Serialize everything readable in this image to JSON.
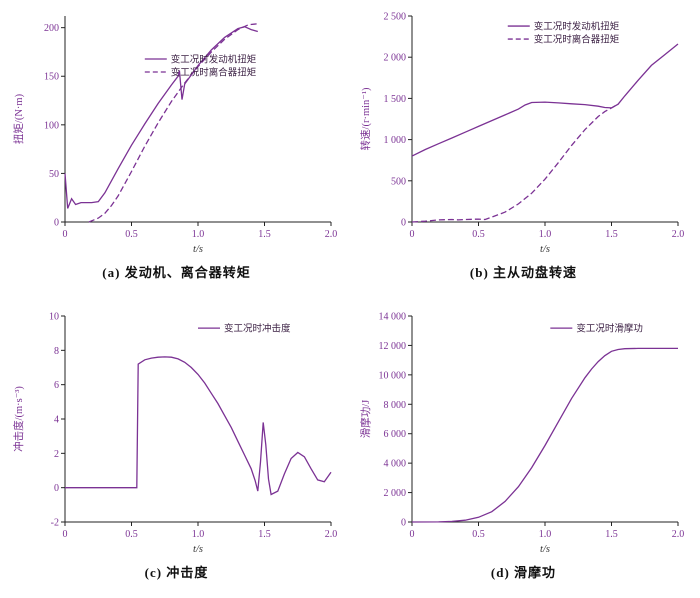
{
  "colors": {
    "line": "#7b3294",
    "tick_text": "#7b3294",
    "axis": "#222222",
    "xlabel_text": "#333333",
    "legend_text": "#3c2144",
    "caption": "#111111"
  },
  "chart_data": [
    {
      "id": "a",
      "type": "line",
      "caption": "(a) 发动机、离合器转矩",
      "xlabel": "t/s",
      "ylabel": "扭矩/(N·m)",
      "xlim": [
        0,
        2
      ],
      "ylim": [
        0,
        212
      ],
      "xticks": {
        "values": [
          0,
          0.5,
          1,
          1.5,
          2
        ],
        "labels": [
          "0",
          "0.5",
          "1.0",
          "1.5",
          "2.0"
        ]
      },
      "yticks": {
        "values": [
          0,
          50,
          100,
          150,
          200
        ],
        "labels": [
          "0",
          "50",
          "100",
          "150",
          "200"
        ]
      },
      "legend_pos": {
        "fx": 0.3,
        "fy": 0.17
      },
      "grid": false,
      "series": [
        {
          "name": "变工况时发动机扭矩",
          "style": "solid",
          "points": [
            [
              0,
              50
            ],
            [
              0.02,
              14
            ],
            [
              0.05,
              24
            ],
            [
              0.08,
              18
            ],
            [
              0.12,
              20
            ],
            [
              0.2,
              20
            ],
            [
              0.25,
              21
            ],
            [
              0.3,
              30
            ],
            [
              0.4,
              55
            ],
            [
              0.5,
              79
            ],
            [
              0.6,
              101
            ],
            [
              0.7,
              122
            ],
            [
              0.8,
              141
            ],
            [
              0.85,
              150
            ],
            [
              0.86,
              156
            ],
            [
              0.88,
              126
            ],
            [
              0.9,
              142
            ],
            [
              1.0,
              161
            ],
            [
              1.1,
              177
            ],
            [
              1.2,
              190
            ],
            [
              1.3,
              199
            ],
            [
              1.35,
              201
            ],
            [
              1.4,
              198
            ],
            [
              1.45,
              196
            ]
          ]
        },
        {
          "name": "变工况时离合器扭矩",
          "style": "dashed",
          "points": [
            [
              0.18,
              0
            ],
            [
              0.25,
              4
            ],
            [
              0.3,
              9
            ],
            [
              0.35,
              17
            ],
            [
              0.4,
              27
            ],
            [
              0.5,
              52
            ],
            [
              0.6,
              78
            ],
            [
              0.7,
              102
            ],
            [
              0.8,
              124
            ],
            [
              0.9,
              143
            ],
            [
              1.0,
              160
            ],
            [
              1.1,
              175
            ],
            [
              1.2,
              188
            ],
            [
              1.3,
              198
            ],
            [
              1.38,
              203
            ],
            [
              1.45,
              204
            ]
          ]
        }
      ]
    },
    {
      "id": "b",
      "type": "line",
      "caption": "(b) 主从动盘转速",
      "xlabel": "t/s",
      "ylabel": "转速/(r·min⁻¹)",
      "xlim": [
        0,
        2
      ],
      "ylim": [
        0,
        2500
      ],
      "xticks": {
        "values": [
          0,
          0.5,
          1,
          1.5,
          2
        ],
        "labels": [
          "0",
          "0.5",
          "1.0",
          "1.5",
          "2.0"
        ]
      },
      "yticks": {
        "values": [
          0,
          500,
          1000,
          1500,
          2000,
          2500
        ],
        "labels": [
          "0",
          "500",
          "1 000",
          "1 500",
          "2 000",
          "2 500"
        ]
      },
      "legend_pos": {
        "fx": 0.36,
        "fy": 0.01
      },
      "grid": false,
      "series": [
        {
          "name": "变工况时发动机扭矩",
          "style": "solid",
          "points": [
            [
              0,
              800
            ],
            [
              0.1,
              880
            ],
            [
              0.2,
              950
            ],
            [
              0.3,
              1020
            ],
            [
              0.4,
              1090
            ],
            [
              0.5,
              1160
            ],
            [
              0.6,
              1230
            ],
            [
              0.7,
              1300
            ],
            [
              0.8,
              1370
            ],
            [
              0.85,
              1420
            ],
            [
              0.9,
              1450
            ],
            [
              1.0,
              1455
            ],
            [
              1.1,
              1445
            ],
            [
              1.2,
              1435
            ],
            [
              1.3,
              1425
            ],
            [
              1.4,
              1405
            ],
            [
              1.45,
              1390
            ],
            [
              1.5,
              1385
            ],
            [
              1.55,
              1430
            ],
            [
              1.6,
              1530
            ],
            [
              1.7,
              1720
            ],
            [
              1.8,
              1900
            ],
            [
              1.9,
              2030
            ],
            [
              2.0,
              2160
            ]
          ]
        },
        {
          "name": "变工况时离合器扭矩",
          "style": "dashed",
          "points": [
            [
              0,
              0
            ],
            [
              0.1,
              10
            ],
            [
              0.2,
              25
            ],
            [
              0.3,
              30
            ],
            [
              0.35,
              25
            ],
            [
              0.4,
              30
            ],
            [
              0.5,
              35
            ],
            [
              0.55,
              30
            ],
            [
              0.6,
              60
            ],
            [
              0.7,
              120
            ],
            [
              0.8,
              220
            ],
            [
              0.9,
              350
            ],
            [
              1.0,
              520
            ],
            [
              1.1,
              720
            ],
            [
              1.2,
              930
            ],
            [
              1.3,
              1120
            ],
            [
              1.4,
              1280
            ],
            [
              1.45,
              1340
            ],
            [
              1.5,
              1385
            ],
            [
              1.55,
              1430
            ]
          ]
        }
      ]
    },
    {
      "id": "c",
      "type": "line",
      "caption": "(c) 冲击度",
      "xlabel": "t/s",
      "ylabel": "冲击度/(m·s⁻³)",
      "xlim": [
        0,
        2
      ],
      "ylim": [
        -2,
        10
      ],
      "xticks": {
        "values": [
          0,
          0.5,
          1,
          1.5,
          2
        ],
        "labels": [
          "0",
          "0.5",
          "1.0",
          "1.5",
          "2.0"
        ]
      },
      "yticks": {
        "values": [
          -2,
          0,
          2,
          4,
          6,
          8,
          10
        ],
        "labels": [
          "-2",
          "0",
          "2",
          "4",
          "6",
          "8",
          "10"
        ]
      },
      "legend_pos": {
        "fx": 0.5,
        "fy": 0.02
      },
      "grid": false,
      "series": [
        {
          "name": "变工况时冲击度",
          "style": "solid",
          "points": [
            [
              0,
              0
            ],
            [
              0.54,
              0
            ],
            [
              0.55,
              7.2
            ],
            [
              0.6,
              7.45
            ],
            [
              0.65,
              7.55
            ],
            [
              0.7,
              7.6
            ],
            [
              0.75,
              7.62
            ],
            [
              0.8,
              7.6
            ],
            [
              0.85,
              7.5
            ],
            [
              0.9,
              7.3
            ],
            [
              0.95,
              7.0
            ],
            [
              1.0,
              6.6
            ],
            [
              1.05,
              6.1
            ],
            [
              1.1,
              5.5
            ],
            [
              1.15,
              4.9
            ],
            [
              1.2,
              4.2
            ],
            [
              1.25,
              3.5
            ],
            [
              1.3,
              2.7
            ],
            [
              1.35,
              1.9
            ],
            [
              1.4,
              1.1
            ],
            [
              1.43,
              0.4
            ],
            [
              1.45,
              -0.2
            ],
            [
              1.47,
              1.5
            ],
            [
              1.49,
              3.8
            ],
            [
              1.51,
              2.5
            ],
            [
              1.53,
              0.5
            ],
            [
              1.55,
              -0.4
            ],
            [
              1.6,
              -0.2
            ],
            [
              1.65,
              0.8
            ],
            [
              1.7,
              1.7
            ],
            [
              1.75,
              2.05
            ],
            [
              1.8,
              1.8
            ],
            [
              1.85,
              1.1
            ],
            [
              1.9,
              0.45
            ],
            [
              1.95,
              0.35
            ],
            [
              2.0,
              0.9
            ]
          ]
        }
      ]
    },
    {
      "id": "d",
      "type": "line",
      "caption": "(d) 滑摩功",
      "xlabel": "t/s",
      "ylabel": "滑摩功/J",
      "xlim": [
        0,
        2
      ],
      "ylim": [
        0,
        14000
      ],
      "xticks": {
        "values": [
          0,
          0.5,
          1,
          1.5,
          2
        ],
        "labels": [
          "0",
          "0.5",
          "1.0",
          "1.5",
          "2.0"
        ]
      },
      "yticks": {
        "values": [
          0,
          2000,
          4000,
          6000,
          8000,
          10000,
          12000,
          14000
        ],
        "labels": [
          "0",
          "2 000",
          "4 000",
          "6 000",
          "8 000",
          "10 000",
          "12 000",
          "14 000"
        ]
      },
      "legend_pos": {
        "fx": 0.52,
        "fy": 0.02
      },
      "grid": false,
      "series": [
        {
          "name": "变工况时滑摩功",
          "style": "solid",
          "points": [
            [
              0,
              0
            ],
            [
              0.2,
              10
            ],
            [
              0.3,
              40
            ],
            [
              0.4,
              120
            ],
            [
              0.5,
              320
            ],
            [
              0.6,
              700
            ],
            [
              0.7,
              1400
            ],
            [
              0.8,
              2400
            ],
            [
              0.9,
              3700
            ],
            [
              1.0,
              5200
            ],
            [
              1.1,
              6800
            ],
            [
              1.2,
              8400
            ],
            [
              1.3,
              9800
            ],
            [
              1.35,
              10400
            ],
            [
              1.4,
              10900
            ],
            [
              1.45,
              11300
            ],
            [
              1.5,
              11600
            ],
            [
              1.55,
              11720
            ],
            [
              1.6,
              11780
            ],
            [
              1.7,
              11800
            ],
            [
              1.8,
              11800
            ],
            [
              1.9,
              11800
            ],
            [
              2.0,
              11800
            ]
          ]
        }
      ]
    }
  ]
}
